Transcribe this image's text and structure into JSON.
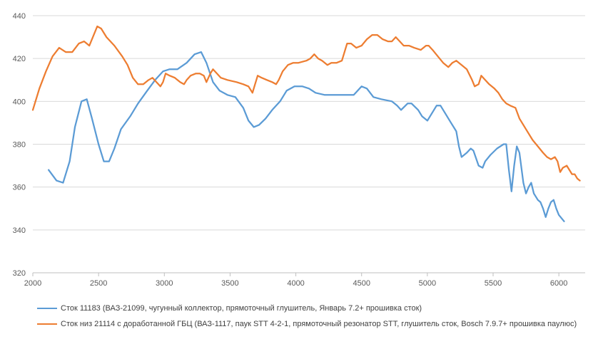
{
  "chart_data": {
    "type": "line",
    "xlim": [
      2000,
      6200
    ],
    "ylim": [
      320,
      440
    ],
    "x_ticks": [
      "2000",
      "2500",
      "3000",
      "3500",
      "4000",
      "4500",
      "5000",
      "5500",
      "6000"
    ],
    "y_ticks": [
      "320",
      "340",
      "360",
      "380",
      "400",
      "420",
      "440"
    ],
    "grid": "horizontal",
    "legend_position": "bottom",
    "series": [
      {
        "name": "Сток 11183 (ВАЗ-21099, чугунный  коллектор, прямоточный глушитель, Январь 7.2+ прошивка сток)",
        "color": "#5B9BD5",
        "points": [
          [
            2120,
            368
          ],
          [
            2180,
            363
          ],
          [
            2230,
            362
          ],
          [
            2280,
            372
          ],
          [
            2320,
            388
          ],
          [
            2370,
            400
          ],
          [
            2410,
            401
          ],
          [
            2450,
            392
          ],
          [
            2500,
            380
          ],
          [
            2540,
            372
          ],
          [
            2580,
            372
          ],
          [
            2620,
            378
          ],
          [
            2670,
            387
          ],
          [
            2740,
            393
          ],
          [
            2800,
            399
          ],
          [
            2870,
            405
          ],
          [
            2930,
            410
          ],
          [
            2990,
            414
          ],
          [
            3040,
            415
          ],
          [
            3100,
            415
          ],
          [
            3170,
            418
          ],
          [
            3230,
            422
          ],
          [
            3280,
            423
          ],
          [
            3320,
            418
          ],
          [
            3370,
            409
          ],
          [
            3420,
            405
          ],
          [
            3480,
            403
          ],
          [
            3540,
            402
          ],
          [
            3600,
            397
          ],
          [
            3640,
            391
          ],
          [
            3680,
            388
          ],
          [
            3720,
            389
          ],
          [
            3770,
            392
          ],
          [
            3820,
            396
          ],
          [
            3880,
            400
          ],
          [
            3930,
            405
          ],
          [
            3990,
            407
          ],
          [
            4050,
            407
          ],
          [
            4100,
            406
          ],
          [
            4150,
            404
          ],
          [
            4220,
            403
          ],
          [
            4300,
            403
          ],
          [
            4380,
            403
          ],
          [
            4440,
            403
          ],
          [
            4500,
            407
          ],
          [
            4540,
            406
          ],
          [
            4590,
            402
          ],
          [
            4650,
            401
          ],
          [
            4730,
            400
          ],
          [
            4770,
            398
          ],
          [
            4800,
            396
          ],
          [
            4850,
            399
          ],
          [
            4880,
            399
          ],
          [
            4930,
            396
          ],
          [
            4960,
            393
          ],
          [
            5000,
            391
          ],
          [
            5030,
            394
          ],
          [
            5070,
            398
          ],
          [
            5100,
            398
          ],
          [
            5140,
            394
          ],
          [
            5180,
            390
          ],
          [
            5220,
            386
          ],
          [
            5240,
            379
          ],
          [
            5260,
            374
          ],
          [
            5300,
            376
          ],
          [
            5330,
            378
          ],
          [
            5350,
            377
          ],
          [
            5390,
            370
          ],
          [
            5420,
            369
          ],
          [
            5440,
            372
          ],
          [
            5480,
            375
          ],
          [
            5530,
            378
          ],
          [
            5580,
            380
          ],
          [
            5600,
            380
          ],
          [
            5620,
            368
          ],
          [
            5640,
            358
          ],
          [
            5660,
            370
          ],
          [
            5680,
            379
          ],
          [
            5700,
            376
          ],
          [
            5730,
            362
          ],
          [
            5750,
            357
          ],
          [
            5770,
            360
          ],
          [
            5790,
            362
          ],
          [
            5810,
            357
          ],
          [
            5840,
            354
          ],
          [
            5860,
            353
          ],
          [
            5880,
            350
          ],
          [
            5900,
            346
          ],
          [
            5920,
            350
          ],
          [
            5940,
            353
          ],
          [
            5960,
            354
          ],
          [
            5980,
            350
          ],
          [
            6000,
            347
          ],
          [
            6040,
            344
          ]
        ]
      },
      {
        "name": "Сток низ 21114 с доработанной ГБЦ (ВАЗ-1117, паук STT 4-2-1, прямоточный резонатор STT, глушитель сток, Bosch 7.9.7+ прошивка паулюс)",
        "color": "#ED7D31",
        "points": [
          [
            2000,
            396
          ],
          [
            2050,
            406
          ],
          [
            2100,
            414
          ],
          [
            2150,
            421
          ],
          [
            2200,
            425
          ],
          [
            2250,
            423
          ],
          [
            2300,
            423
          ],
          [
            2350,
            427
          ],
          [
            2390,
            428
          ],
          [
            2430,
            426
          ],
          [
            2470,
            432
          ],
          [
            2490,
            435
          ],
          [
            2520,
            434
          ],
          [
            2560,
            430
          ],
          [
            2620,
            426
          ],
          [
            2680,
            421
          ],
          [
            2720,
            417
          ],
          [
            2760,
            411
          ],
          [
            2800,
            408
          ],
          [
            2840,
            408
          ],
          [
            2880,
            410
          ],
          [
            2910,
            411
          ],
          [
            2940,
            409
          ],
          [
            2970,
            407
          ],
          [
            2990,
            409
          ],
          [
            3010,
            413
          ],
          [
            3040,
            412
          ],
          [
            3080,
            411
          ],
          [
            3120,
            409
          ],
          [
            3150,
            408
          ],
          [
            3170,
            410
          ],
          [
            3200,
            412
          ],
          [
            3240,
            413
          ],
          [
            3270,
            413
          ],
          [
            3300,
            412
          ],
          [
            3320,
            409
          ],
          [
            3350,
            413
          ],
          [
            3370,
            415
          ],
          [
            3400,
            413
          ],
          [
            3430,
            411
          ],
          [
            3480,
            410
          ],
          [
            3550,
            409
          ],
          [
            3600,
            408
          ],
          [
            3640,
            407
          ],
          [
            3670,
            404
          ],
          [
            3690,
            408
          ],
          [
            3710,
            412
          ],
          [
            3740,
            411
          ],
          [
            3780,
            410
          ],
          [
            3820,
            409
          ],
          [
            3850,
            408
          ],
          [
            3870,
            410
          ],
          [
            3900,
            414
          ],
          [
            3940,
            417
          ],
          [
            3980,
            418
          ],
          [
            4020,
            418
          ],
          [
            4080,
            419
          ],
          [
            4110,
            420
          ],
          [
            4140,
            422
          ],
          [
            4170,
            420
          ],
          [
            4200,
            419
          ],
          [
            4240,
            417
          ],
          [
            4270,
            418
          ],
          [
            4310,
            418
          ],
          [
            4350,
            419
          ],
          [
            4390,
            427
          ],
          [
            4420,
            427
          ],
          [
            4460,
            425
          ],
          [
            4500,
            426
          ],
          [
            4540,
            429
          ],
          [
            4580,
            431
          ],
          [
            4620,
            431
          ],
          [
            4660,
            429
          ],
          [
            4700,
            428
          ],
          [
            4730,
            428
          ],
          [
            4760,
            430
          ],
          [
            4790,
            428
          ],
          [
            4820,
            426
          ],
          [
            4860,
            426
          ],
          [
            4900,
            425
          ],
          [
            4950,
            424
          ],
          [
            4990,
            426
          ],
          [
            5010,
            426
          ],
          [
            5040,
            424
          ],
          [
            5080,
            421
          ],
          [
            5120,
            418
          ],
          [
            5160,
            416
          ],
          [
            5190,
            418
          ],
          [
            5220,
            419
          ],
          [
            5260,
            417
          ],
          [
            5300,
            415
          ],
          [
            5340,
            410
          ],
          [
            5360,
            407
          ],
          [
            5390,
            408
          ],
          [
            5410,
            412
          ],
          [
            5440,
            410
          ],
          [
            5470,
            408
          ],
          [
            5510,
            406
          ],
          [
            5540,
            404
          ],
          [
            5570,
            401
          ],
          [
            5600,
            399
          ],
          [
            5630,
            398
          ],
          [
            5670,
            397
          ],
          [
            5700,
            392
          ],
          [
            5730,
            389
          ],
          [
            5760,
            386
          ],
          [
            5800,
            382
          ],
          [
            5840,
            379
          ],
          [
            5880,
            376
          ],
          [
            5910,
            374
          ],
          [
            5940,
            373
          ],
          [
            5970,
            374
          ],
          [
            5990,
            372
          ],
          [
            6010,
            367
          ],
          [
            6030,
            369
          ],
          [
            6060,
            370
          ],
          [
            6080,
            368
          ],
          [
            6100,
            366
          ],
          [
            6120,
            366
          ],
          [
            6140,
            364
          ],
          [
            6160,
            363
          ]
        ]
      }
    ]
  }
}
